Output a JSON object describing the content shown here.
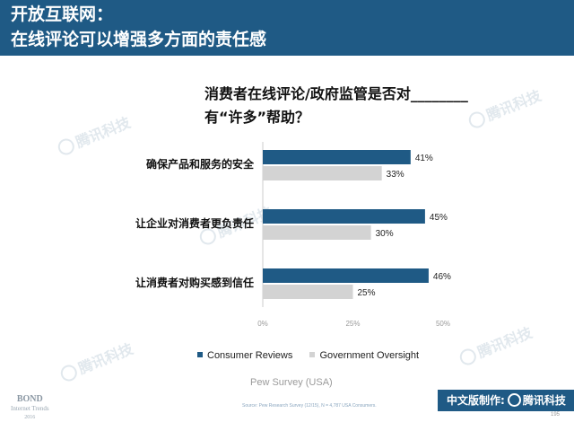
{
  "header": {
    "line1": "开放互联网：",
    "line2": "在线评论可以增强多方面的责任感"
  },
  "question": {
    "line1": "消费者在线评论/政府监管是否对________",
    "line2": "有“许多”帮助？"
  },
  "colors": {
    "header_bg": "#1f5a85",
    "consumer": "#1f5a85",
    "government": "#d3d3d3"
  },
  "chart_data": {
    "type": "bar",
    "orientation": "horizontal",
    "categories": [
      "确保产品和服务的安全",
      "让企业对消费者更负责任",
      "让消费者对购买感到信任"
    ],
    "series": [
      {
        "name": "Consumer Reviews",
        "values": [
          41,
          45,
          46
        ]
      },
      {
        "name": "Government Oversight",
        "values": [
          33,
          30,
          25
        ]
      }
    ],
    "value_labels": [
      [
        "41%",
        "33%"
      ],
      [
        "45%",
        "30%"
      ],
      [
        "46%",
        "25%"
      ]
    ],
    "x_ticks": [
      "0%",
      "25%",
      "50%"
    ],
    "xlim": [
      0,
      50
    ],
    "legend_position": "bottom",
    "grid": false
  },
  "legend": {
    "consumer": "Consumer Reviews",
    "government": "Government Oversight"
  },
  "survey_label": "Pew Survey (USA)",
  "source": "Source: Pew Research Survey (12/15), N = 4,787 USA Consumers.",
  "bond": {
    "line1": "BOND",
    "line2": "Internet Trends",
    "line3": "2016"
  },
  "footer": {
    "label": "中文版制作:",
    "brand": "腾讯科技",
    "brand_icon": "tencent-logo-icon"
  },
  "watermark_text": "腾讯科技",
  "page_number": "195"
}
